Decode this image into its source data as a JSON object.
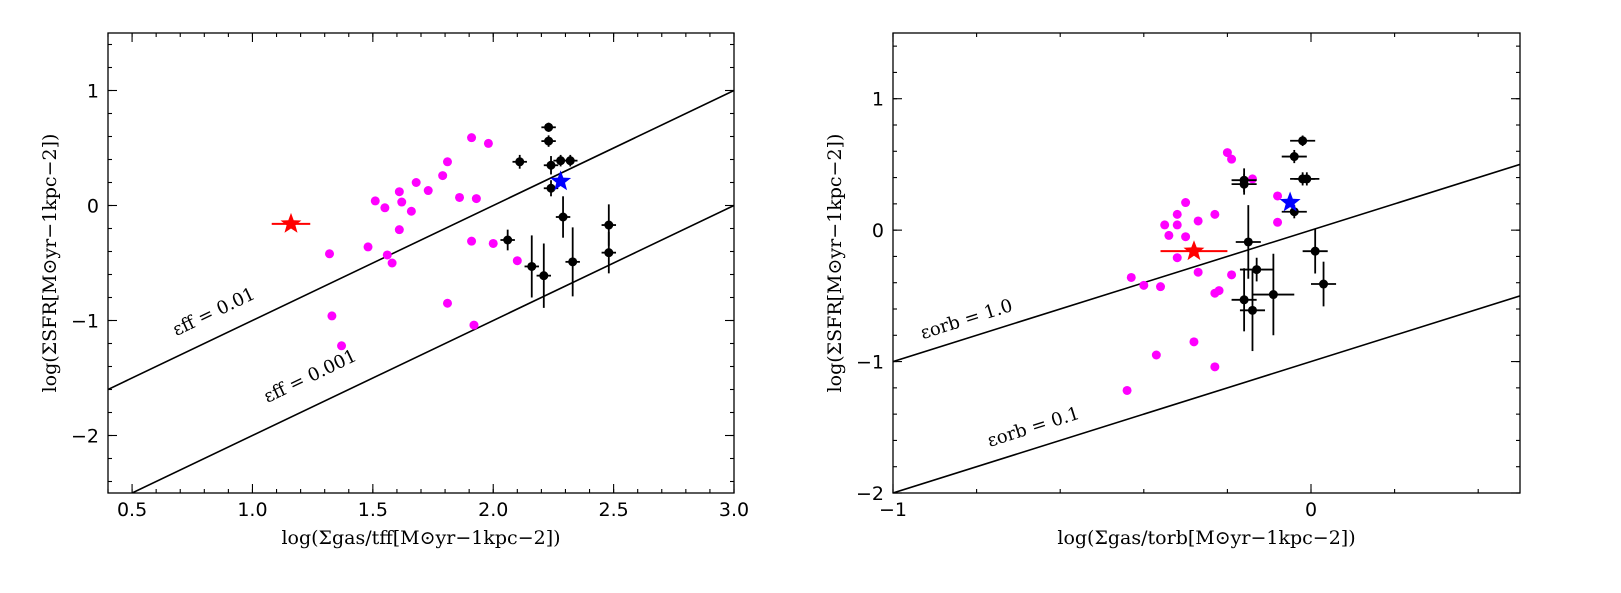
{
  "chart_data": [
    {
      "type": "scatter",
      "xlabel": "log(Σgas/tff[M⊙yr−1kpc−2])",
      "ylabel": "log(ΣSFR[M⊙yr−1kpc−2])",
      "xlim": [
        0.4,
        3.0
      ],
      "ylim": [
        -2.5,
        1.5
      ],
      "xticks": [
        0.5,
        1.0,
        1.5,
        2.0,
        2.5,
        3.0
      ],
      "xtick_labels": [
        "0.5",
        "1.0",
        "1.5",
        "2.0",
        "2.5",
        "3.0"
      ],
      "yticks": [
        -2,
        -1,
        0,
        1
      ],
      "ytick_labels": [
        "−2",
        "−1",
        "0",
        "1"
      ],
      "lines": [
        {
          "label": "εff = 0.01",
          "offset": -2.0
        },
        {
          "label": "εff = 0.001",
          "offset": -3.0
        }
      ],
      "series": [
        {
          "color": "#ff00ff",
          "marker": "circle",
          "points": [
            [
              1.32,
              -0.42
            ],
            [
              1.33,
              -0.96
            ],
            [
              1.37,
              -1.22
            ],
            [
              1.48,
              -0.36
            ],
            [
              1.51,
              0.04
            ],
            [
              1.55,
              -0.02
            ],
            [
              1.56,
              -0.43
            ],
            [
              1.58,
              -0.5
            ],
            [
              1.61,
              -0.21
            ],
            [
              1.61,
              0.12
            ],
            [
              1.62,
              0.03
            ],
            [
              1.66,
              -0.05
            ],
            [
              1.68,
              0.2
            ],
            [
              1.73,
              0.13
            ],
            [
              1.79,
              0.26
            ],
            [
              1.81,
              0.38
            ],
            [
              1.81,
              -0.85
            ],
            [
              1.86,
              0.07
            ],
            [
              1.91,
              0.59
            ],
            [
              1.91,
              -0.31
            ],
            [
              1.92,
              -1.04
            ],
            [
              1.93,
              0.06
            ],
            [
              1.98,
              0.54
            ],
            [
              2.0,
              -0.33
            ],
            [
              2.1,
              -0.48
            ]
          ]
        },
        {
          "color": "#000000",
          "marker": "errorbar",
          "points": [
            [
              2.11,
              0.38,
              0.03,
              0.06
            ],
            [
              2.06,
              -0.3,
              0.03,
              0.09
            ],
            [
              2.16,
              -0.53,
              0.03,
              0.27
            ],
            [
              2.21,
              -0.61,
              0.03,
              0.28
            ],
            [
              2.23,
              0.68,
              0.03,
              0.04
            ],
            [
              2.23,
              0.56,
              0.03,
              0.05
            ],
            [
              2.24,
              0.35,
              0.03,
              0.08
            ],
            [
              2.24,
              0.15,
              0.03,
              0.07
            ],
            [
              2.28,
              0.39,
              0.03,
              0.05
            ],
            [
              2.32,
              0.39,
              0.03,
              0.05
            ],
            [
              2.29,
              -0.1,
              0.03,
              0.18
            ],
            [
              2.33,
              -0.49,
              0.03,
              0.3
            ],
            [
              2.48,
              -0.17,
              0.03,
              0.18
            ],
            [
              2.48,
              -0.41,
              0.03,
              0.18
            ]
          ]
        },
        {
          "color": "#ff0000",
          "marker": "star",
          "points": [
            [
              1.16,
              -0.16,
              0.08,
              0.0
            ]
          ]
        },
        {
          "color": "#0000ff",
          "marker": "star",
          "points": [
            [
              2.28,
              0.21,
              0.0,
              0.0
            ]
          ]
        }
      ]
    },
    {
      "type": "scatter",
      "xlabel": "log(Σgas/torb[M⊙yr−1kpc−2])",
      "ylabel": "log(ΣSFR[M⊙yr−1kpc−2])",
      "xlim": [
        -1.0,
        0.5
      ],
      "ylim": [
        -2.0,
        1.5
      ],
      "xticks": [
        -1,
        0
      ],
      "xtick_labels": [
        "−1",
        "0"
      ],
      "yticks": [
        -2,
        -1,
        0,
        1
      ],
      "ytick_labels": [
        "−2",
        "−1",
        "0",
        "1"
      ],
      "lines": [
        {
          "label": "εorb = 1.0",
          "offset": 0.0
        },
        {
          "label": "εorb = 0.1",
          "offset": -1.0
        }
      ],
      "series": [
        {
          "color": "#ff00ff",
          "marker": "circle",
          "points": [
            [
              -0.44,
              -1.22
            ],
            [
              -0.43,
              -0.36
            ],
            [
              -0.4,
              -0.42
            ],
            [
              -0.37,
              -0.95
            ],
            [
              -0.36,
              -0.43
            ],
            [
              -0.35,
              0.04
            ],
            [
              -0.34,
              -0.04
            ],
            [
              -0.32,
              0.12
            ],
            [
              -0.32,
              0.04
            ],
            [
              -0.32,
              -0.21
            ],
            [
              -0.3,
              0.21
            ],
            [
              -0.3,
              -0.05
            ],
            [
              -0.28,
              -0.85
            ],
            [
              -0.27,
              0.07
            ],
            [
              -0.27,
              -0.32
            ],
            [
              -0.23,
              0.12
            ],
            [
              -0.23,
              -0.48
            ],
            [
              -0.23,
              -1.04
            ],
            [
              -0.22,
              -0.46
            ],
            [
              -0.2,
              0.59
            ],
            [
              -0.19,
              0.54
            ],
            [
              -0.19,
              -0.34
            ],
            [
              -0.14,
              0.39
            ],
            [
              -0.08,
              0.26
            ],
            [
              -0.08,
              0.06
            ]
          ]
        },
        {
          "color": "#000000",
          "marker": "errorbar",
          "points": [
            [
              -0.16,
              0.38,
              0.03,
              0.09
            ],
            [
              -0.16,
              0.35,
              0.03,
              0.08
            ],
            [
              -0.16,
              -0.53,
              0.03,
              0.24
            ],
            [
              -0.15,
              -0.09,
              0.03,
              0.28
            ],
            [
              -0.14,
              -0.61,
              0.03,
              0.31
            ],
            [
              -0.13,
              -0.3,
              0.04,
              0.09
            ],
            [
              -0.09,
              -0.49,
              0.05,
              0.31
            ],
            [
              -0.04,
              0.14,
              0.03,
              0.05
            ],
            [
              -0.04,
              0.56,
              0.03,
              0.05
            ],
            [
              -0.02,
              0.68,
              0.03,
              0.04
            ],
            [
              -0.02,
              0.39,
              0.03,
              0.05
            ],
            [
              -0.01,
              0.39,
              0.03,
              0.05
            ],
            [
              0.01,
              -0.16,
              0.03,
              0.17
            ],
            [
              0.03,
              -0.41,
              0.03,
              0.17
            ]
          ]
        },
        {
          "color": "#ff0000",
          "marker": "star",
          "points": [
            [
              -0.28,
              -0.16,
              0.08,
              0.0
            ]
          ]
        },
        {
          "color": "#0000ff",
          "marker": "star",
          "points": [
            [
              -0.05,
              0.21,
              0.0,
              0.0
            ]
          ]
        }
      ]
    }
  ]
}
